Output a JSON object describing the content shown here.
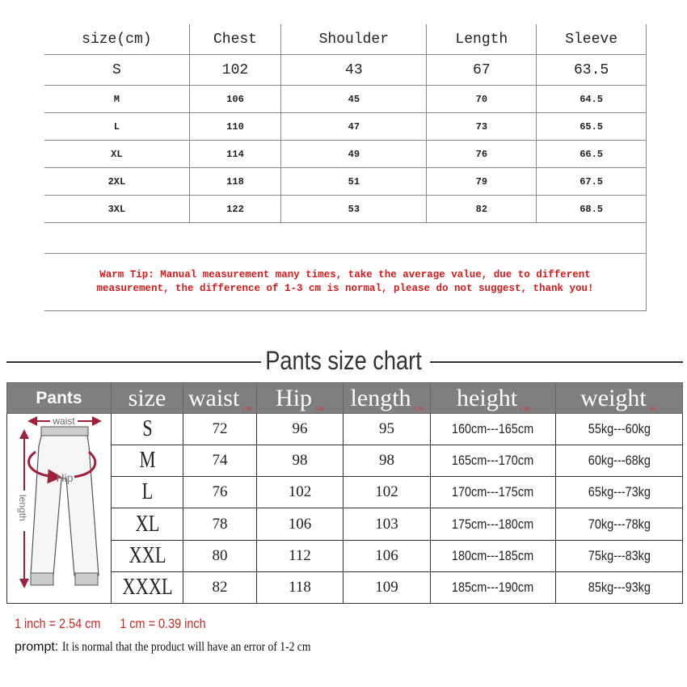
{
  "top_table": {
    "headers": [
      "size(cm)",
      "Chest",
      "Shoulder",
      "Length",
      "Sleeve"
    ],
    "rows": [
      [
        "S",
        "102",
        "43",
        "67",
        "63.5"
      ],
      [
        "M",
        "106",
        "45",
        "70",
        "64.5"
      ],
      [
        "L",
        "110",
        "47",
        "73",
        "65.5"
      ],
      [
        "XL",
        "114",
        "49",
        "76",
        "66.5"
      ],
      [
        "2XL",
        "118",
        "51",
        "79",
        "67.5"
      ],
      [
        "3XL",
        "122",
        "53",
        "82",
        "68.5"
      ]
    ],
    "tip_line1": "Warm Tip: Manual measurement many times, take the average value, due to different",
    "tip_line2": "measurement, the difference of 1-3 cm is normal, please do not suggest, thank you!"
  },
  "pants": {
    "title": "Pants size chart",
    "headers": [
      {
        "label": "Pants"
      },
      {
        "label": "size"
      },
      {
        "label": "waist",
        "unit": "CM"
      },
      {
        "label": "Hip",
        "unit": "CM"
      },
      {
        "label": "length",
        "unit": "CM"
      },
      {
        "label": "height",
        "unit": "CM"
      },
      {
        "label": "weight",
        "unit": "KG"
      }
    ],
    "diagram_labels": {
      "waist": "waist",
      "hip": "Hip",
      "length": "length"
    },
    "rows": [
      [
        "S",
        "72",
        "96",
        "95",
        "160cm---165cm",
        "55kg---60kg"
      ],
      [
        "M",
        "74",
        "98",
        "98",
        "165cm---170cm",
        "60kg---68kg"
      ],
      [
        "L",
        "76",
        "102",
        "102",
        "170cm---175cm",
        "65kg---73kg"
      ],
      [
        "XL",
        "78",
        "106",
        "103",
        "175cm---180cm",
        "70kg---78kg"
      ],
      [
        "XXL",
        "80",
        "112",
        "106",
        "180cm---185cm",
        "75kg---83kg"
      ],
      [
        "XXXL",
        "82",
        "118",
        "109",
        "185cm---190cm",
        "85kg---93kg"
      ]
    ]
  },
  "footer": {
    "inch": "1 inch = 2.54 cm",
    "cm": "1 cm = 0.39 inch",
    "prompt_label": "prompt:",
    "prompt_text": "It is normal that the product will have an error of 1-2 cm"
  },
  "colors": {
    "tip": "#d21a1a",
    "header_bg": "#7f7f7f",
    "arrow": "#a0203a"
  }
}
